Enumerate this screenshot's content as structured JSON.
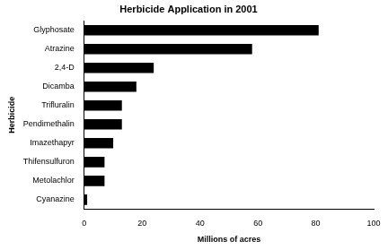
{
  "chart_data": {
    "type": "bar",
    "orientation": "horizontal",
    "title": "Herbicide Application in 2001",
    "x_label": "Millions of acres",
    "y_label": "Herbicide",
    "categories": [
      "Glyphosate",
      "Atrazine",
      "2,4-D",
      "Dicamba",
      "Trifluralin",
      "Pendimethalin",
      "Imazethapyr",
      "Thifensulfuron",
      "Metolachlor",
      "Cyanazine"
    ],
    "values": [
      81,
      58,
      24,
      18,
      13,
      13,
      10,
      7,
      7,
      1
    ],
    "color": "#000000",
    "xlim": [
      0,
      100
    ],
    "xticks": [
      0,
      20,
      40,
      60,
      80,
      100
    ],
    "grid": false
  }
}
